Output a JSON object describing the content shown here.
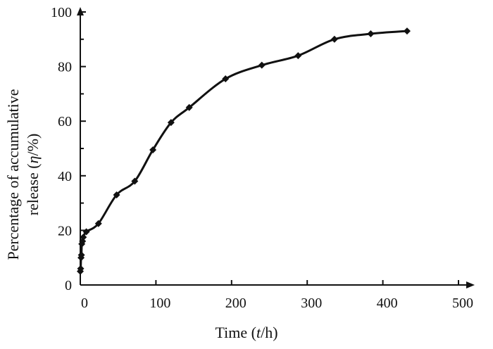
{
  "chart_data": {
    "type": "line",
    "x_title": {
      "prefix": "Time (",
      "var": "t",
      "suffix": "/h)"
    },
    "y_title": {
      "line1": "Percentage of accumulative",
      "line2_prefix": "release (",
      "line2_var": "η",
      "line2_suffix": "/%)"
    },
    "xlim": [
      0,
      500
    ],
    "ylim": [
      0,
      100
    ],
    "x_ticks": [
      "0",
      "100",
      "200",
      "300",
      "400",
      "500"
    ],
    "y_ticks": [
      "0",
      "20",
      "40",
      "60",
      "80",
      "100"
    ],
    "grid": false,
    "series": [
      {
        "x": [
          0,
          0.5,
          1,
          1.5,
          2,
          3,
          4,
          8,
          24,
          48,
          72,
          96,
          120,
          144,
          192,
          240,
          288,
          336,
          384,
          432
        ],
        "y": [
          5,
          6,
          10,
          11,
          15,
          16,
          17.5,
          19.5,
          22.5,
          33,
          38,
          49.5,
          59.5,
          65,
          75.5,
          80.5,
          84,
          90,
          92,
          93
        ]
      }
    ]
  }
}
